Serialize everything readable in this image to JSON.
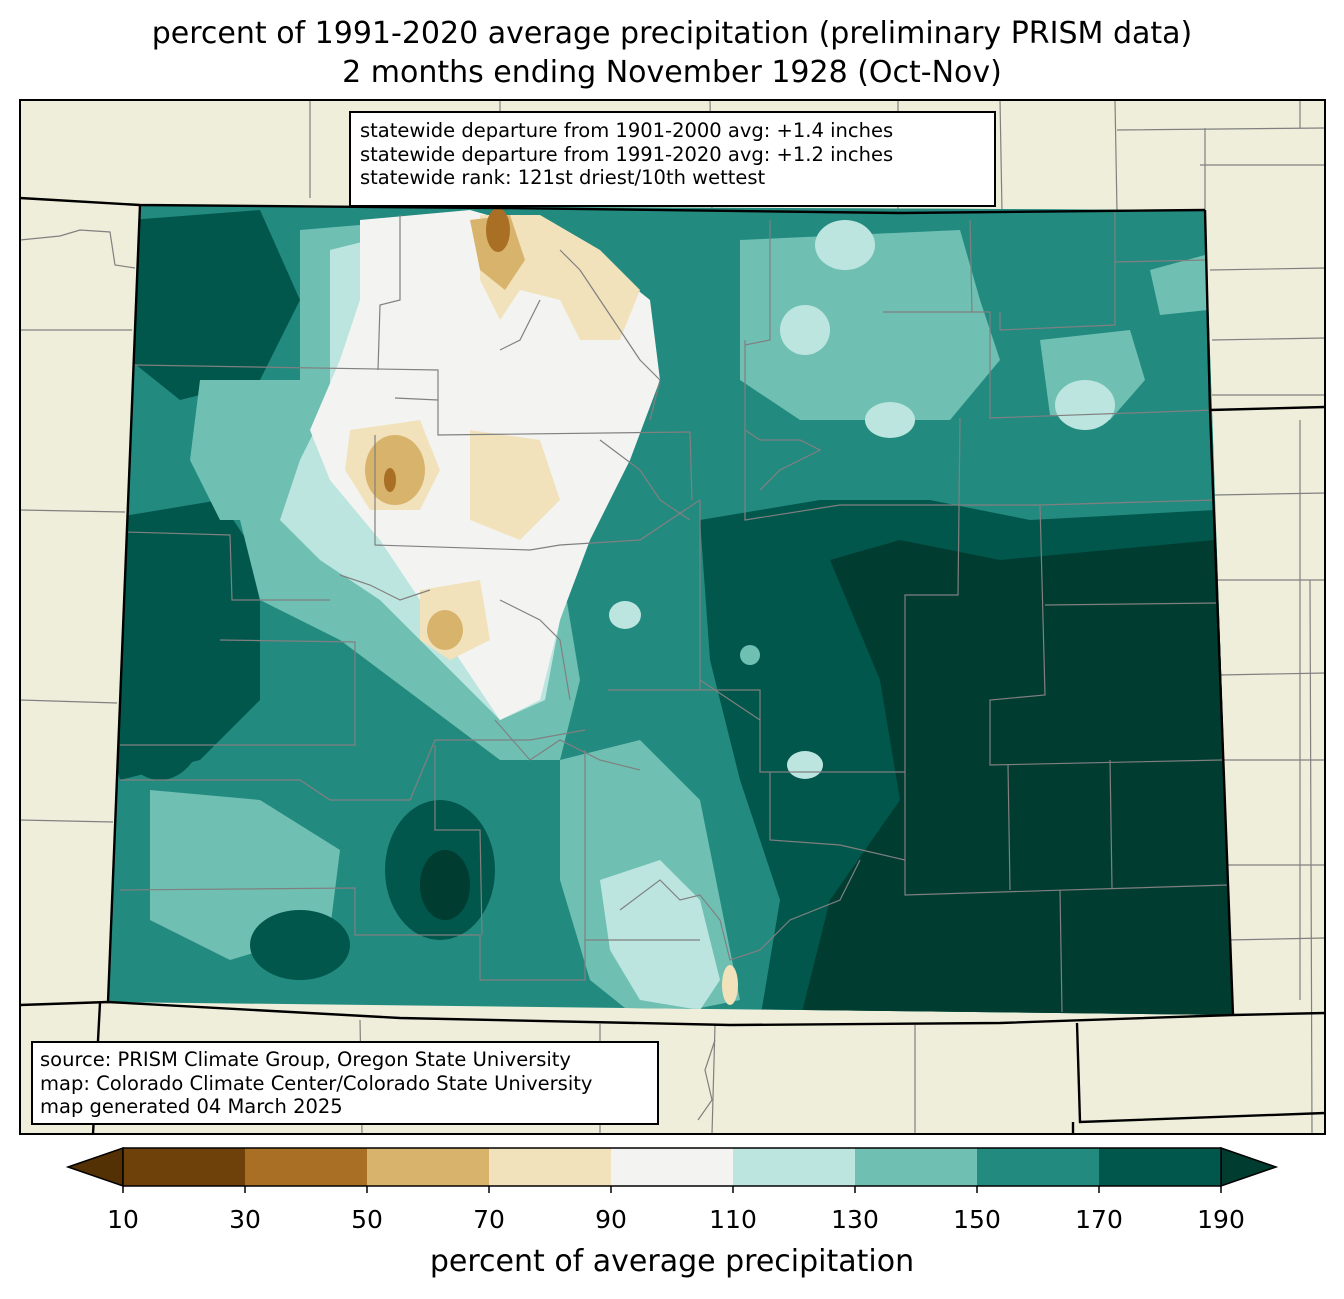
{
  "title": {
    "line1": "percent of 1991-2020 average precipitation (preliminary PRISM data)",
    "line2": "2 months ending November 1928 (Oct-Nov)"
  },
  "stats": {
    "dep_1901_2000": "statewide departure from 1901-2000 avg: +1.4 inches",
    "dep_1991_2020": "statewide departure from 1991-2020 avg: +1.2 inches",
    "rank": "statewide rank: 121st driest/10th wettest"
  },
  "credits": {
    "source": "source: PRISM Climate Group, Oregon State University",
    "map": "map: Colorado Climate Center/Colorado State University",
    "generated": "map generated 04 March 2025"
  },
  "colorbar": {
    "label": "percent of average precipitation",
    "ticks": [
      "10",
      "30",
      "50",
      "70",
      "90",
      "110",
      "130",
      "150",
      "170",
      "190"
    ],
    "under_color": "#543005",
    "over_color": "#003c30",
    "bins": [
      {
        "range": "10-30",
        "color": "#6e400a"
      },
      {
        "range": "30-50",
        "color": "#a96f25"
      },
      {
        "range": "50-70",
        "color": "#d8b36c"
      },
      {
        "range": "70-90",
        "color": "#f2e2bc"
      },
      {
        "range": "90-110",
        "color": "#f3f4f2"
      },
      {
        "range": "110-130",
        "color": "#bde5df"
      },
      {
        "range": "130-150",
        "color": "#6fc0b3"
      },
      {
        "range": "150-170",
        "color": "#238a80"
      },
      {
        "range": "170-190",
        "color": "#01574c"
      }
    ]
  },
  "map_colors": {
    "land": "#efeeda",
    "county_lines": "#808080",
    "border": "#000000"
  }
}
